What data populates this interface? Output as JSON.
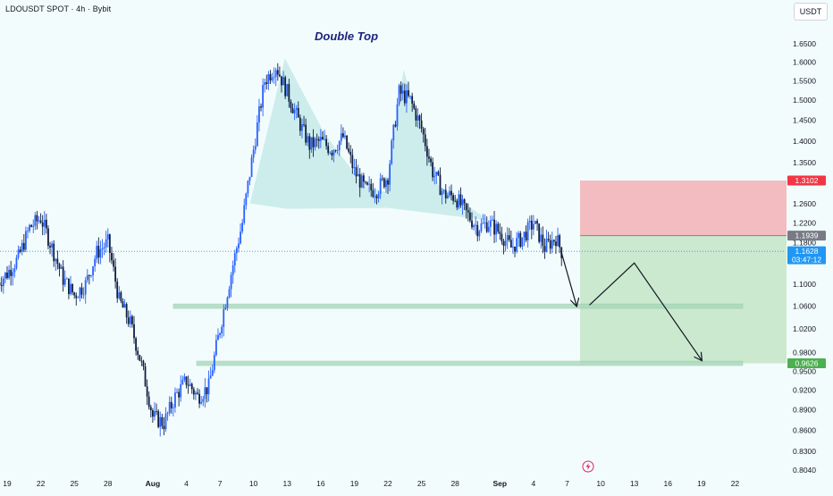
{
  "header": {
    "symbol_title": "LDOUSDT SPOT · 4h · Bybit",
    "currency": "USDT"
  },
  "annotation": {
    "pattern_label": "Double Top"
  },
  "colors": {
    "up_candle": "#2962ff",
    "down_candle": "#0e1e42",
    "pattern_fill": "#bfe8e6",
    "stop_zone": "#f2b8bd",
    "target_zone": "#c8e8cc",
    "support_band": "#a5d6b9",
    "stop_badge": "#f23645",
    "entry_badge": "#787b86",
    "current_badge": "#2196f3",
    "target_badge": "#4caf50",
    "background": "#f3fcfc"
  },
  "icons": {
    "lightning": "lightning-icon"
  },
  "price_badges": {
    "stop": "1.3102",
    "entry": "1.1939",
    "current_price": "1.1628",
    "countdown": "03:47:12",
    "target": "0.9626"
  },
  "chart_data": {
    "type": "candlestick",
    "title": "Double Top",
    "yaxis": {
      "scale": "log",
      "ticks": [
        "1.6500",
        "1.6000",
        "1.5500",
        "1.5000",
        "1.4500",
        "1.4000",
        "1.3500",
        "1.2600",
        "1.2200",
        "1.1800",
        "1.1000",
        "1.0600",
        "1.0200",
        "0.9800",
        "0.9500",
        "0.9200",
        "0.8900",
        "0.8600",
        "0.8300",
        "0.8040"
      ],
      "range": [
        0.803,
        1.68
      ]
    },
    "xaxis": {
      "ticks": [
        "19",
        "22",
        "25",
        "28",
        "Aug",
        "4",
        "7",
        "10",
        "13",
        "16",
        "19",
        "22",
        "25",
        "28",
        "Sep",
        "4",
        "7",
        "10",
        "13",
        "16",
        "19",
        "22"
      ]
    },
    "price_path": [
      {
        "x": "Jul 18",
        "y": 1.1
      },
      {
        "x": "Jul 19",
        "y": 1.12
      },
      {
        "x": "Jul 20",
        "y": 1.15
      },
      {
        "x": "Jul 21",
        "y": 1.21
      },
      {
        "x": "Jul 22",
        "y": 1.23
      },
      {
        "x": "Jul 23",
        "y": 1.17
      },
      {
        "x": "Jul 24",
        "y": 1.11
      },
      {
        "x": "Jul 25",
        "y": 1.08
      },
      {
        "x": "Jul 26",
        "y": 1.1
      },
      {
        "x": "Jul 27",
        "y": 1.16
      },
      {
        "x": "Jul 28",
        "y": 1.18
      },
      {
        "x": "Jul 29",
        "y": 1.07
      },
      {
        "x": "Jul 30",
        "y": 1.03
      },
      {
        "x": "Jul 31",
        "y": 0.96
      },
      {
        "x": "Aug 1",
        "y": 0.88
      },
      {
        "x": "Aug 2",
        "y": 0.87
      },
      {
        "x": "Aug 3",
        "y": 0.91
      },
      {
        "x": "Aug 4",
        "y": 0.935
      },
      {
        "x": "Aug 5",
        "y": 0.91
      },
      {
        "x": "Aug 6",
        "y": 0.925
      },
      {
        "x": "Aug 7",
        "y": 1.02
      },
      {
        "x": "Aug 8",
        "y": 1.12
      },
      {
        "x": "Aug 9",
        "y": 1.22
      },
      {
        "x": "Aug 10",
        "y": 1.38
      },
      {
        "x": "Aug 11",
        "y": 1.55
      },
      {
        "x": "Aug 12",
        "y": 1.59
      },
      {
        "x": "Aug 13",
        "y": 1.52
      },
      {
        "x": "Aug 14",
        "y": 1.45
      },
      {
        "x": "Aug 15",
        "y": 1.39
      },
      {
        "x": "Aug 16",
        "y": 1.4
      },
      {
        "x": "Aug 17",
        "y": 1.38
      },
      {
        "x": "Aug 18",
        "y": 1.41
      },
      {
        "x": "Aug 19",
        "y": 1.33
      },
      {
        "x": "Aug 20",
        "y": 1.29
      },
      {
        "x": "Aug 21",
        "y": 1.29
      },
      {
        "x": "Aug 22",
        "y": 1.32
      },
      {
        "x": "Aug 23",
        "y": 1.52
      },
      {
        "x": "Aug 24",
        "y": 1.5
      },
      {
        "x": "Aug 25",
        "y": 1.43
      },
      {
        "x": "Aug 26",
        "y": 1.33
      },
      {
        "x": "Aug 27",
        "y": 1.28
      },
      {
        "x": "Aug 28",
        "y": 1.275
      },
      {
        "x": "Aug 29",
        "y": 1.24
      },
      {
        "x": "Aug 30",
        "y": 1.21
      },
      {
        "x": "Aug 31",
        "y": 1.22
      },
      {
        "x": "Sep 1",
        "y": 1.2
      },
      {
        "x": "Sep 2",
        "y": 1.17
      },
      {
        "x": "Sep 3",
        "y": 1.19
      },
      {
        "x": "Sep 4",
        "y": 1.22
      },
      {
        "x": "Sep 5",
        "y": 1.17
      },
      {
        "x": "Sep 6",
        "y": 1.19
      },
      {
        "x": "Sep 6.5",
        "y": 1.1628
      }
    ],
    "trade_setup": {
      "stop": 1.3102,
      "entry": 1.1939,
      "current": 1.1628,
      "target": 0.9626
    },
    "support_levels": [
      1.06,
      0.9626
    ],
    "projection": [
      {
        "x": "Sep 6.5",
        "y": 1.16
      },
      {
        "x": "Sep 8",
        "y": 1.061
      },
      {
        "x": "Sep 9",
        "y": 1.062
      },
      {
        "x": "Sep 13",
        "y": 1.14
      },
      {
        "x": "Sep 19",
        "y": 0.968
      }
    ],
    "pattern_region": {
      "first_top": 1.61,
      "second_top": 1.58,
      "neckline": 1.253
    }
  }
}
